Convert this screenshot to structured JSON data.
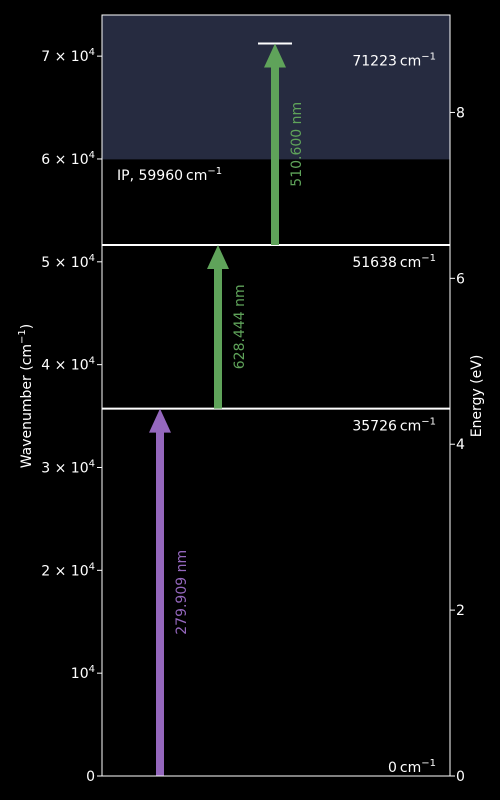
{
  "chart_data": {
    "type": "energy-level-diagram",
    "left_axis": {
      "label_main": "Wavenumber (cm",
      "label_sup": "−1",
      "label_end": ")",
      "range": [
        0,
        74000
      ],
      "ticks": [
        {
          "value": 0,
          "base": "0",
          "sup": ""
        },
        {
          "value": 10000,
          "base": "10",
          "sup": "4"
        },
        {
          "value": 20000,
          "base": "2 × 10",
          "sup": "4"
        },
        {
          "value": 30000,
          "base": "3 × 10",
          "sup": "4"
        },
        {
          "value": 40000,
          "base": "4 × 10",
          "sup": "4"
        },
        {
          "value": 50000,
          "base": "5 × 10",
          "sup": "4"
        },
        {
          "value": 60000,
          "base": "6 × 10",
          "sup": "4"
        },
        {
          "value": 70000,
          "base": "7 × 10",
          "sup": "4"
        }
      ]
    },
    "right_axis": {
      "label": "Energy (eV)",
      "ticks": [
        {
          "value": 0,
          "label": "0"
        },
        {
          "value": 2,
          "label": "2"
        },
        {
          "value": 4,
          "label": "4"
        },
        {
          "value": 6,
          "label": "6"
        },
        {
          "value": 8,
          "label": "8"
        }
      ]
    },
    "ionization": {
      "value": 59960,
      "label": "IP, 59960",
      "unit": "cm",
      "unit_sup": "−1",
      "shade_color": "#262b40"
    },
    "levels": [
      {
        "value": 0,
        "label": "0",
        "unit": "cm",
        "unit_sup": "−1"
      },
      {
        "value": 35726,
        "label": "35726",
        "unit": "cm",
        "unit_sup": "−1"
      },
      {
        "value": 51638,
        "label": "51638",
        "unit": "cm",
        "unit_sup": "−1"
      },
      {
        "value": 71223,
        "label": "71223",
        "unit": "cm",
        "unit_sup": "−1"
      }
    ],
    "transitions": [
      {
        "from": 0,
        "to": 35726,
        "label": "279.909 nm",
        "color": "#9467bd"
      },
      {
        "from": 35726,
        "to": 51638,
        "label": "628.444 nm",
        "color": "#5fa35a"
      },
      {
        "from": 51638,
        "to": 71223,
        "label": "510.600 nm",
        "color": "#5fa35a"
      }
    ]
  }
}
